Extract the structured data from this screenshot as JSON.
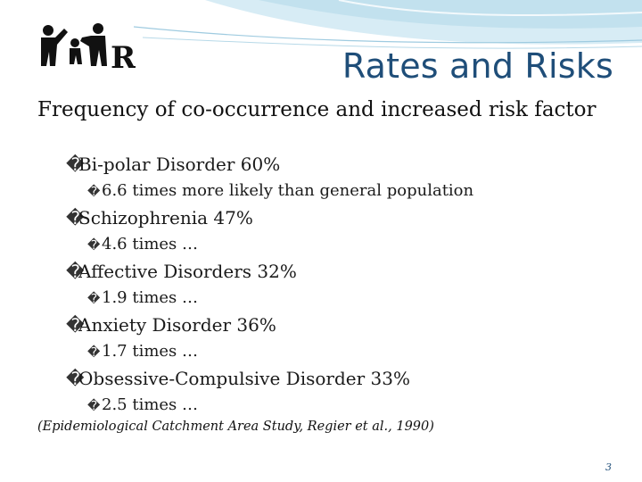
{
  "slide": {
    "title": "Rates and Risks",
    "subtitle": "Frequency of co-occurrence and increased risk factor",
    "items": [
      {
        "text": "Bi-polar Disorder 60%",
        "sub": "6.6 times more likely than general population"
      },
      {
        "text": "Schizophrenia 47%",
        "sub": "4.6 times …"
      },
      {
        "text": "Affective Disorders 32%",
        "sub": "1.9 times …"
      },
      {
        "text": "Anxiety Disorder 36%",
        "sub": "1.7 times …"
      },
      {
        "text": "Obsessive-Compulsive Disorder 33%",
        "sub": "2.5 times …"
      }
    ],
    "citation": "(Epidemiological Catchment Area Study, Regier et al., 1990)",
    "slide_number": "3",
    "logo_letters": "R",
    "bullet_glyph": "�",
    "colors": {
      "title": "#1f4e79",
      "swoosh": "#bfe0ee",
      "text": "#111111"
    }
  }
}
